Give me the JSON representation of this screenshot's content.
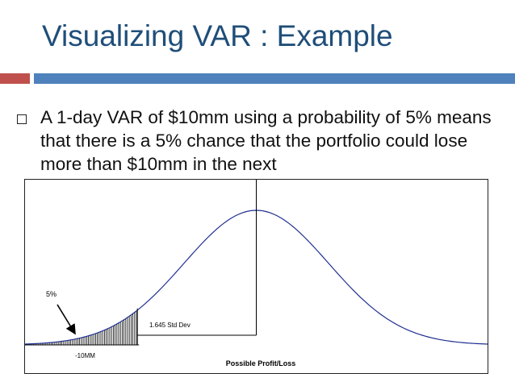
{
  "slide": {
    "title": "Visualizing VAR : Example",
    "bullet": "A 1-day VAR of $10mm using a probability of 5% means that there is a 5% chance that the portfolio could lose more than $10mm in the next"
  },
  "theme": {
    "title_color": "#1f4e79",
    "accent_red": "#c0504d",
    "accent_blue": "#4f81bd",
    "curve_color": "#1f2f8f"
  },
  "chart_data": {
    "type": "area",
    "xlabel": "Possible Profit/Loss",
    "ylabel": "",
    "distribution": "normal",
    "mean_sd": 0,
    "xlim_sd": [
      -3.2,
      3.2
    ],
    "tail_cutoff_sd": -1.645,
    "annotations": {
      "tail_percent": "5%",
      "distance_label": "1.645 Std Dev",
      "cutoff_label": "-10MM"
    }
  }
}
